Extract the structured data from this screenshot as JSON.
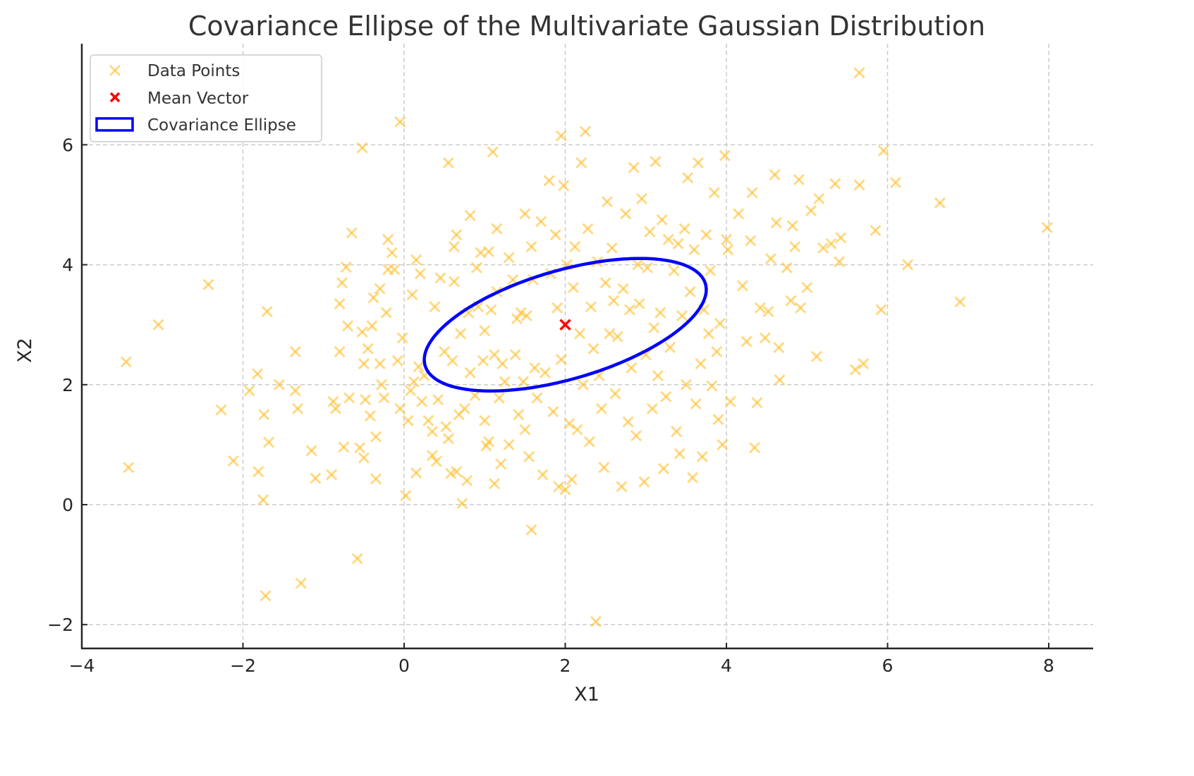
{
  "chart_data": {
    "type": "scatter",
    "title": "Covariance Ellipse of the Multivariate Gaussian Distribution",
    "xlabel": "X1",
    "ylabel": "X2",
    "xlim": [
      -4,
      8.55
    ],
    "ylim": [
      -2.4,
      7.6
    ],
    "xticks": [
      -4,
      -2,
      0,
      2,
      4,
      6,
      8
    ],
    "yticks": [
      -2,
      0,
      2,
      4,
      6
    ],
    "xtick_labels": [
      "−4",
      "−2",
      "0",
      "2",
      "4",
      "6",
      "8"
    ],
    "ytick_labels": [
      "−2",
      "0",
      "2",
      "4",
      "6"
    ],
    "grid": true,
    "grid_style": "dashed",
    "legend_position": "upper left",
    "legend": [
      {
        "label": "Data Points",
        "marker": "x",
        "color": "#FFC233"
      },
      {
        "label": "Mean Vector",
        "marker": "x",
        "color": "#FF0000"
      },
      {
        "label": "Covariance Ellipse",
        "marker": "rect-outline",
        "color": "#0000FF"
      }
    ],
    "mean_vector": {
      "x": 2,
      "y": 3
    },
    "covariance_ellipse": {
      "center": [
        2,
        3
      ],
      "width": 3.75,
      "height": 1.75,
      "angle_deg": 24,
      "color": "#0000FF",
      "linewidth": 3
    },
    "series": [
      {
        "name": "Data Points",
        "color": "#FFC233",
        "alpha": 0.6,
        "marker": "x",
        "points": [
          [
            -3.45,
            2.38
          ],
          [
            -3.42,
            0.62
          ],
          [
            -3.05,
            3.0
          ],
          [
            -2.43,
            3.67
          ],
          [
            -2.27,
            1.58
          ],
          [
            -2.12,
            0.73
          ],
          [
            -1.92,
            1.9
          ],
          [
            -1.82,
            2.18
          ],
          [
            -1.81,
            0.55
          ],
          [
            -1.75,
            0.08
          ],
          [
            -1.74,
            1.5
          ],
          [
            -1.72,
            -1.52
          ],
          [
            -1.7,
            3.22
          ],
          [
            -1.68,
            1.04
          ],
          [
            -1.55,
            2.0
          ],
          [
            -1.35,
            2.55
          ],
          [
            -1.35,
            1.9
          ],
          [
            -1.32,
            1.6
          ],
          [
            -1.28,
            -1.31
          ],
          [
            -1.15,
            0.9
          ],
          [
            -1.1,
            0.44
          ],
          [
            -0.9,
            0.5
          ],
          [
            -0.88,
            1.72
          ],
          [
            -0.85,
            1.6
          ],
          [
            -0.8,
            2.55
          ],
          [
            -0.8,
            3.35
          ],
          [
            -0.77,
            3.7
          ],
          [
            -0.75,
            0.96
          ],
          [
            -0.72,
            3.96
          ],
          [
            -0.7,
            2.98
          ],
          [
            -0.68,
            1.78
          ],
          [
            -0.65,
            4.53
          ],
          [
            -0.58,
            -0.9
          ],
          [
            -0.55,
            0.95
          ],
          [
            -0.52,
            5.95
          ],
          [
            -0.52,
            2.88
          ],
          [
            -0.5,
            2.35
          ],
          [
            -0.5,
            0.78
          ],
          [
            -0.48,
            1.75
          ],
          [
            -0.45,
            2.6
          ],
          [
            -0.42,
            1.48
          ],
          [
            -0.4,
            2.98
          ],
          [
            -0.38,
            3.45
          ],
          [
            -0.35,
            0.43
          ],
          [
            -0.35,
            1.13
          ],
          [
            -0.3,
            3.6
          ],
          [
            -0.3,
            2.35
          ],
          [
            -0.28,
            2.0
          ],
          [
            -0.25,
            1.78
          ],
          [
            -0.22,
            3.2
          ],
          [
            -0.2,
            3.92
          ],
          [
            -0.2,
            4.42
          ],
          [
            -0.15,
            4.2
          ],
          [
            -0.12,
            3.92
          ],
          [
            -0.08,
            2.4
          ],
          [
            -0.05,
            1.6
          ],
          [
            -0.05,
            6.38
          ],
          [
            -0.02,
            2.78
          ],
          [
            0.02,
            0.15
          ],
          [
            0.05,
            1.4
          ],
          [
            0.08,
            1.9
          ],
          [
            0.1,
            3.5
          ],
          [
            0.12,
            2.05
          ],
          [
            0.15,
            4.08
          ],
          [
            0.15,
            0.53
          ],
          [
            0.18,
            2.3
          ],
          [
            0.2,
            3.85
          ],
          [
            0.22,
            1.72
          ],
          [
            0.25,
            2.15
          ],
          [
            0.3,
            1.4
          ],
          [
            0.35,
            1.22
          ],
          [
            0.35,
            0.82
          ],
          [
            0.38,
            3.3
          ],
          [
            0.4,
            0.72
          ],
          [
            0.42,
            1.75
          ],
          [
            0.45,
            3.78
          ],
          [
            0.5,
            2.55
          ],
          [
            0.52,
            1.3
          ],
          [
            0.55,
            5.7
          ],
          [
            0.55,
            1.1
          ],
          [
            0.58,
            0.52
          ],
          [
            0.6,
            2.4
          ],
          [
            0.62,
            3.72
          ],
          [
            0.62,
            4.3
          ],
          [
            0.65,
            4.5
          ],
          [
            0.65,
            0.55
          ],
          [
            0.68,
            1.5
          ],
          [
            0.7,
            2.85
          ],
          [
            0.72,
            0.02
          ],
          [
            0.75,
            1.6
          ],
          [
            0.78,
            0.4
          ],
          [
            0.8,
            3.2
          ],
          [
            0.82,
            2.2
          ],
          [
            0.82,
            4.82
          ],
          [
            0.88,
            1.82
          ],
          [
            0.9,
            3.95
          ],
          [
            0.92,
            3.3
          ],
          [
            0.95,
            4.2
          ],
          [
            0.98,
            2.4
          ],
          [
            1.0,
            2.9
          ],
          [
            1.0,
            1.4
          ],
          [
            1.02,
            0.98
          ],
          [
            1.05,
            1.05
          ],
          [
            1.05,
            4.22
          ],
          [
            1.08,
            3.25
          ],
          [
            1.1,
            5.88
          ],
          [
            1.12,
            2.5
          ],
          [
            1.12,
            0.35
          ],
          [
            1.15,
            4.6
          ],
          [
            1.15,
            3.55
          ],
          [
            1.18,
            1.78
          ],
          [
            1.2,
            0.68
          ],
          [
            1.22,
            2.35
          ],
          [
            1.25,
            2.05
          ],
          [
            1.3,
            1.0
          ],
          [
            1.3,
            4.12
          ],
          [
            1.35,
            3.75
          ],
          [
            1.38,
            2.5
          ],
          [
            1.4,
            3.1
          ],
          [
            1.42,
            1.5
          ],
          [
            1.45,
            3.2
          ],
          [
            1.48,
            2.05
          ],
          [
            1.5,
            4.85
          ],
          [
            1.5,
            1.25
          ],
          [
            1.52,
            3.15
          ],
          [
            1.55,
            0.8
          ],
          [
            1.58,
            4.3
          ],
          [
            1.58,
            -0.42
          ],
          [
            1.6,
            3.75
          ],
          [
            1.62,
            2.28
          ],
          [
            1.65,
            1.78
          ],
          [
            1.7,
            4.72
          ],
          [
            1.72,
            0.5
          ],
          [
            1.75,
            2.2
          ],
          [
            1.8,
            5.4
          ],
          [
            1.82,
            3.85
          ],
          [
            1.85,
            1.55
          ],
          [
            1.88,
            4.5
          ],
          [
            1.9,
            3.28
          ],
          [
            1.92,
            0.3
          ],
          [
            1.95,
            6.15
          ],
          [
            1.95,
            2.42
          ],
          [
            1.98,
            5.32
          ],
          [
            2.0,
            0.25
          ],
          [
            2.02,
            4.0
          ],
          [
            2.05,
            1.35
          ],
          [
            2.08,
            0.42
          ],
          [
            2.1,
            3.62
          ],
          [
            2.12,
            4.3
          ],
          [
            2.15,
            1.25
          ],
          [
            2.18,
            2.85
          ],
          [
            2.2,
            5.7
          ],
          [
            2.22,
            2.0
          ],
          [
            2.25,
            6.22
          ],
          [
            2.28,
            4.6
          ],
          [
            2.3,
            1.05
          ],
          [
            2.32,
            3.3
          ],
          [
            2.35,
            2.6
          ],
          [
            2.38,
            -1.95
          ],
          [
            2.4,
            4.05
          ],
          [
            2.42,
            2.15
          ],
          [
            2.45,
            1.6
          ],
          [
            2.48,
            0.62
          ],
          [
            2.5,
            3.7
          ],
          [
            2.52,
            5.05
          ],
          [
            2.55,
            2.85
          ],
          [
            2.58,
            4.28
          ],
          [
            2.6,
            3.4
          ],
          [
            2.62,
            1.85
          ],
          [
            2.65,
            2.8
          ],
          [
            2.7,
            0.3
          ],
          [
            2.72,
            3.6
          ],
          [
            2.75,
            4.85
          ],
          [
            2.78,
            1.38
          ],
          [
            2.8,
            3.25
          ],
          [
            2.82,
            2.28
          ],
          [
            2.85,
            5.62
          ],
          [
            2.88,
            1.15
          ],
          [
            2.9,
            4.0
          ],
          [
            2.92,
            3.35
          ],
          [
            2.95,
            5.1
          ],
          [
            2.98,
            0.38
          ],
          [
            3.0,
            2.5
          ],
          [
            3.02,
            3.95
          ],
          [
            3.05,
            4.55
          ],
          [
            3.08,
            1.6
          ],
          [
            3.1,
            2.95
          ],
          [
            3.12,
            5.72
          ],
          [
            3.15,
            2.15
          ],
          [
            3.18,
            3.2
          ],
          [
            3.2,
            4.75
          ],
          [
            3.22,
            0.6
          ],
          [
            3.25,
            1.8
          ],
          [
            3.28,
            4.42
          ],
          [
            3.3,
            2.62
          ],
          [
            3.35,
            3.9
          ],
          [
            3.38,
            1.22
          ],
          [
            3.4,
            4.35
          ],
          [
            3.42,
            0.85
          ],
          [
            3.45,
            3.15
          ],
          [
            3.48,
            4.6
          ],
          [
            3.5,
            2.0
          ],
          [
            3.52,
            5.45
          ],
          [
            3.55,
            3.55
          ],
          [
            3.58,
            0.45
          ],
          [
            3.6,
            4.25
          ],
          [
            3.62,
            1.68
          ],
          [
            3.65,
            5.7
          ],
          [
            3.68,
            2.35
          ],
          [
            3.7,
            0.8
          ],
          [
            3.72,
            3.25
          ],
          [
            3.75,
            4.5
          ],
          [
            3.78,
            2.85
          ],
          [
            3.8,
            3.9
          ],
          [
            3.82,
            1.98
          ],
          [
            3.85,
            5.2
          ],
          [
            3.88,
            2.55
          ],
          [
            3.9,
            1.42
          ],
          [
            3.92,
            3.02
          ],
          [
            3.95,
            1.0
          ],
          [
            3.98,
            5.82
          ],
          [
            4.0,
            4.42
          ],
          [
            4.02,
            4.25
          ],
          [
            4.05,
            1.72
          ],
          [
            4.15,
            4.85
          ],
          [
            4.2,
            3.65
          ],
          [
            4.25,
            2.72
          ],
          [
            4.3,
            4.4
          ],
          [
            4.32,
            5.2
          ],
          [
            4.35,
            0.95
          ],
          [
            4.38,
            1.7
          ],
          [
            4.42,
            3.28
          ],
          [
            4.48,
            2.78
          ],
          [
            4.52,
            3.22
          ],
          [
            4.55,
            4.1
          ],
          [
            4.6,
            5.5
          ],
          [
            4.62,
            4.7
          ],
          [
            4.65,
            2.62
          ],
          [
            4.66,
            2.08
          ],
          [
            4.75,
            3.95
          ],
          [
            4.8,
            3.4
          ],
          [
            4.82,
            4.65
          ],
          [
            4.85,
            4.3
          ],
          [
            4.9,
            5.42
          ],
          [
            4.92,
            3.28
          ],
          [
            5.0,
            3.62
          ],
          [
            5.05,
            4.9
          ],
          [
            5.12,
            2.47
          ],
          [
            5.15,
            5.1
          ],
          [
            5.2,
            4.28
          ],
          [
            5.3,
            4.35
          ],
          [
            5.35,
            5.35
          ],
          [
            5.4,
            4.05
          ],
          [
            5.42,
            4.45
          ],
          [
            5.6,
            2.25
          ],
          [
            5.65,
            7.2
          ],
          [
            5.65,
            5.33
          ],
          [
            5.7,
            2.35
          ],
          [
            5.85,
            4.57
          ],
          [
            5.92,
            3.25
          ],
          [
            5.95,
            5.9
          ],
          [
            6.1,
            5.37
          ],
          [
            6.25,
            4.0
          ],
          [
            6.65,
            5.03
          ],
          [
            6.9,
            3.38
          ],
          [
            7.98,
            4.62
          ]
        ]
      }
    ]
  },
  "legend": {
    "items": [
      {
        "label": "Data Points"
      },
      {
        "label": "Mean Vector"
      },
      {
        "label": "Covariance Ellipse"
      }
    ]
  },
  "colors": {
    "data_points": "#FFC233",
    "mean": "#FF0000",
    "ellipse": "#0000FF",
    "grid": "#CCCCCC",
    "axis": "#262626"
  }
}
